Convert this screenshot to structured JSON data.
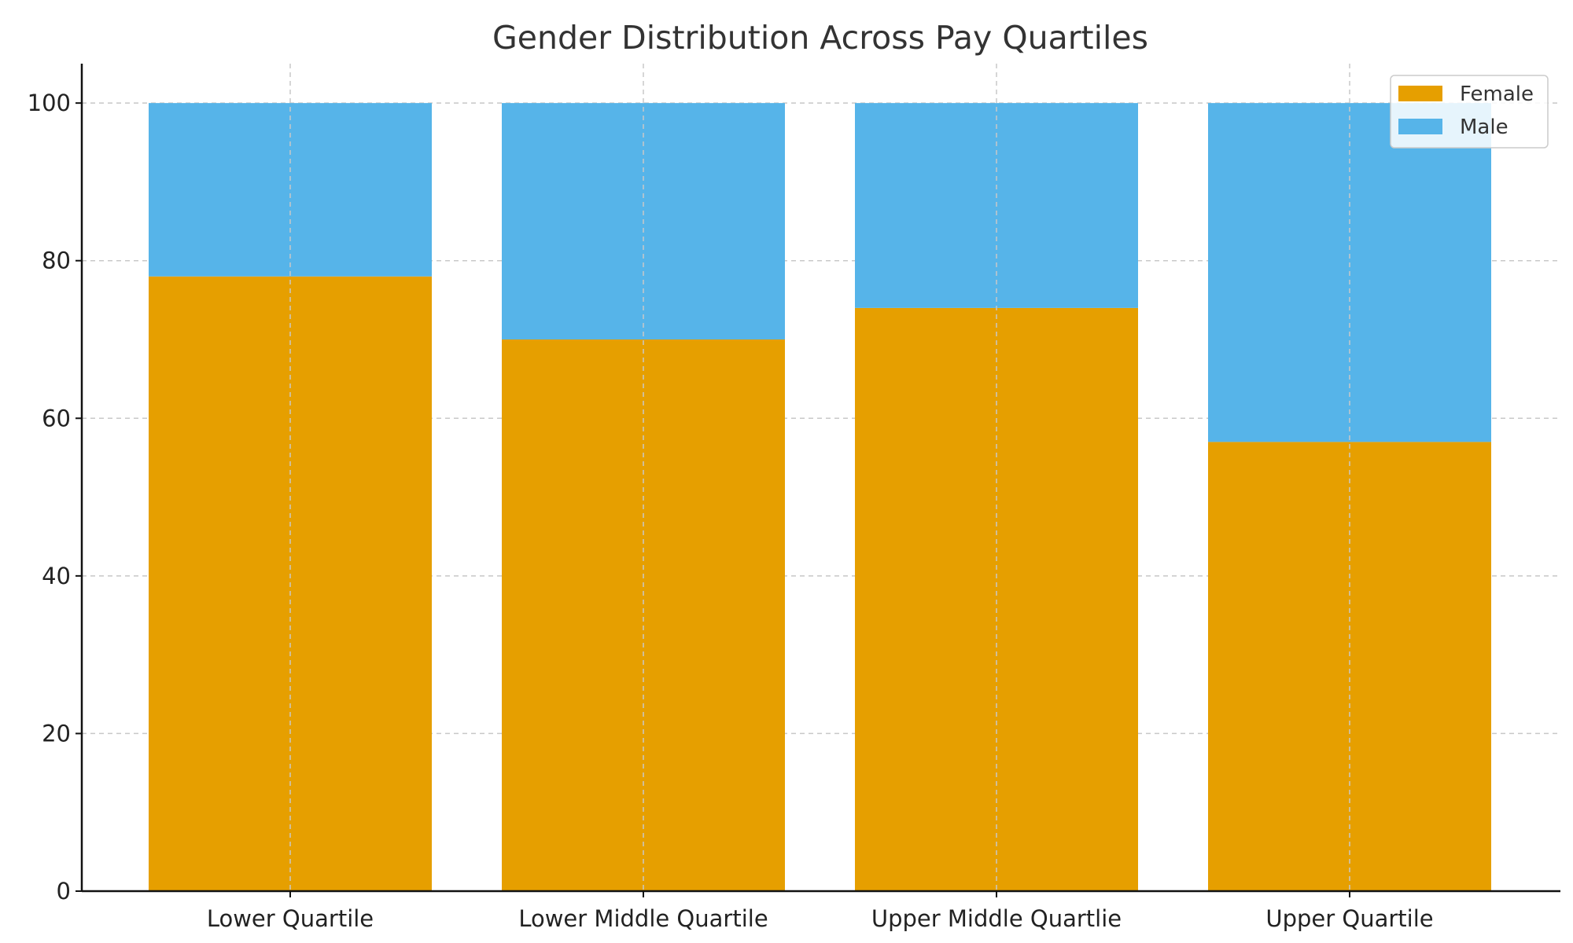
{
  "chart_data": {
    "type": "bar",
    "stacked": true,
    "title": "Gender Distribution Across Pay Quartiles",
    "xlabel": "",
    "ylabel": "",
    "categories": [
      "Lower Quartile",
      "Lower Middle Quartile",
      "Upper Middle Quartlie",
      "Upper Quartile"
    ],
    "series": [
      {
        "name": "Female",
        "values": [
          78,
          70,
          74,
          57
        ],
        "color": "#E69F00"
      },
      {
        "name": "Male",
        "values": [
          22,
          30,
          26,
          43
        ],
        "color": "#56B4E9"
      }
    ],
    "ylim": [
      0,
      105
    ],
    "yticks": [
      0,
      20,
      40,
      60,
      80,
      100
    ],
    "grid": true,
    "legend_position": "top-right"
  }
}
